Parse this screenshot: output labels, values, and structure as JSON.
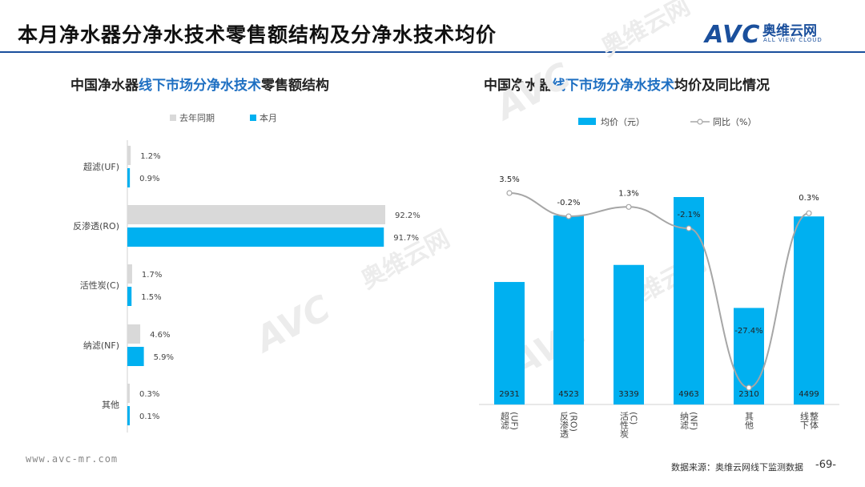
{
  "header": {
    "title": "本月净水器分净水技术零售额结构及分净水技术均价",
    "logo_text": "AVC",
    "logo_cn": "奥维云网",
    "logo_en": "ALL VIEW CLOUD"
  },
  "left_chart_title": {
    "pre": "中国净水器",
    "hl": "线下市场分净水技术",
    "post": "零售额结构"
  },
  "right_chart_title": {
    "pre": "中国净水器",
    "hl": "线下市场分净水技术",
    "post": "均价及同比情况"
  },
  "footer": {
    "url": "www.avc-mr.com",
    "source": "数据来源：奥维云网线下监测数据",
    "page": "-69-"
  },
  "colors": {
    "accent": "#00b0f0",
    "prior": "#d9d9d9",
    "line": "#a6a6a6",
    "brand": "#1a4f9c"
  },
  "chart_data": [
    {
      "type": "bar",
      "orientation": "horizontal",
      "categories": [
        "超滤(UF)",
        "反渗透(RO)",
        "活性炭(C)",
        "纳滤(NF)",
        "其他"
      ],
      "series": [
        {
          "name": "去年同期",
          "values": [
            1.2,
            92.2,
            1.7,
            4.6,
            0.3
          ],
          "labels": [
            "1.2%",
            "92.2%",
            "1.7%",
            "4.6%",
            "0.3%"
          ]
        },
        {
          "name": "本月",
          "values": [
            0.9,
            91.7,
            1.5,
            5.9,
            0.1
          ],
          "labels": [
            "0.9%",
            "91.7%",
            "1.5%",
            "5.9%",
            "0.1%"
          ]
        }
      ],
      "legend": "top"
    },
    {
      "type": "bar+line",
      "categories": [
        "超滤\n(UF)",
        "反渗透\n(RO)",
        "活性炭\n(C)",
        "纳滤\n(NF)",
        "其他",
        "线下\n整体"
      ],
      "bar_series": {
        "name": "均价（元）",
        "values": [
          2931,
          4523,
          3339,
          4963,
          2310,
          4499
        ]
      },
      "line_series": {
        "name": "同比（%）",
        "values": [
          3.5,
          -0.2,
          1.3,
          -2.1,
          -27.4,
          0.3
        ],
        "labels": [
          "3.5%",
          "-0.2%",
          "1.3%",
          "-2.1%",
          "-27.4%",
          "0.3%"
        ]
      },
      "legend": "top"
    }
  ]
}
